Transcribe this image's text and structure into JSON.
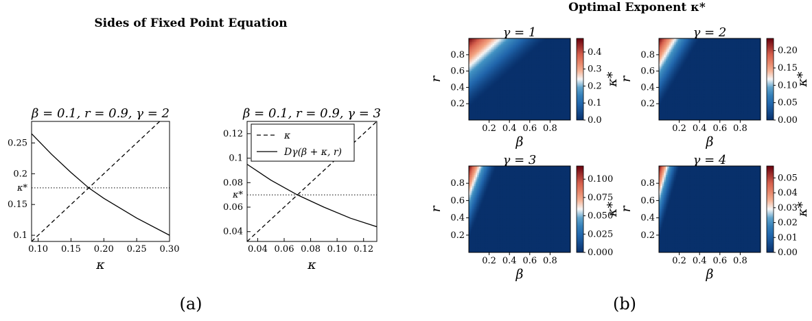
{
  "panel_a": {
    "title": "Sides of Fixed Point Equation",
    "label": "(a)",
    "kstar_label": "κ*"
  },
  "panel_b": {
    "title": "Optimal Exponent κ*",
    "label": "(b)"
  },
  "colors": {
    "low": "#08306b",
    "mid": "#f7f7f7",
    "high": "#67000d"
  },
  "chart_data": [
    {
      "type": "line",
      "title": "β = 0.1, r = 0.9, γ = 2",
      "xlabel": "κ",
      "ylabel": "",
      "xlim": [
        0.09,
        0.3
      ],
      "ylim": [
        0.09,
        0.285
      ],
      "xticks": [
        "0.10",
        "0.15",
        "0.20",
        "0.25",
        "0.30"
      ],
      "yticks": [
        "0.1",
        "0.15",
        "0.2",
        "0.25"
      ],
      "kappa_star": 0.177,
      "series": [
        {
          "style": "dashed",
          "x": [
            0.09,
            0.3
          ],
          "y": [
            0.09,
            0.3
          ]
        },
        {
          "style": "solid",
          "x": [
            0.09,
            0.12,
            0.15,
            0.177,
            0.2,
            0.25,
            0.3
          ],
          "y": [
            0.265,
            0.232,
            0.202,
            0.177,
            0.16,
            0.128,
            0.1
          ]
        }
      ]
    },
    {
      "type": "line",
      "title": "β = 0.1, r = 0.9, γ = 3",
      "xlabel": "κ",
      "ylabel": "",
      "xlim": [
        0.032,
        0.13
      ],
      "ylim": [
        0.032,
        0.13
      ],
      "xticks": [
        "0.04",
        "0.06",
        "0.08",
        "0.10",
        "0.12"
      ],
      "yticks": [
        "0.04",
        "0.06",
        "0.08",
        "0.1",
        "0.12"
      ],
      "kappa_star": 0.07,
      "legend": {
        "placement": "top-left",
        "entries": [
          {
            "label": "κ",
            "style": "dashed"
          },
          {
            "label": "Dγ(β + κ, r)",
            "style": "solid"
          }
        ]
      },
      "series": [
        {
          "style": "dashed",
          "x": [
            0.032,
            0.13
          ],
          "y": [
            0.032,
            0.13
          ]
        },
        {
          "style": "solid",
          "x": [
            0.032,
            0.05,
            0.07,
            0.09,
            0.11,
            0.13
          ],
          "y": [
            0.095,
            0.082,
            0.07,
            0.06,
            0.051,
            0.044
          ]
        }
      ]
    },
    {
      "type": "heatmap",
      "title": "γ = 1",
      "xlabel": "β",
      "ylabel": "r",
      "colorbar_label": "κ*",
      "xlim": [
        0,
        1
      ],
      "ylim": [
        0,
        1
      ],
      "xticks": [
        "0.2",
        "0.4",
        "0.6",
        "0.8"
      ],
      "yticks": [
        "0.2",
        "0.4",
        "0.6",
        "0.8"
      ],
      "vmax": 0.48,
      "colorbar_ticks": [
        "0.0",
        "0.1",
        "0.2",
        "0.3",
        "0.4"
      ],
      "colorbar_values": [
        0,
        0.1,
        0.2,
        0.3,
        0.4
      ],
      "gamma": 1
    },
    {
      "type": "heatmap",
      "title": "γ = 2",
      "xlabel": "β",
      "ylabel": "r",
      "colorbar_label": "κ*",
      "xlim": [
        0,
        1
      ],
      "ylim": [
        0,
        1
      ],
      "xticks": [
        "0.2",
        "0.4",
        "0.6",
        "0.8"
      ],
      "yticks": [
        "0.2",
        "0.4",
        "0.6",
        "0.8"
      ],
      "vmax": 0.235,
      "colorbar_ticks": [
        "0.00",
        "0.05",
        "0.10",
        "0.15",
        "0.20"
      ],
      "colorbar_values": [
        0,
        0.05,
        0.1,
        0.15,
        0.2
      ],
      "gamma": 2
    },
    {
      "type": "heatmap",
      "title": "γ = 3",
      "xlabel": "β",
      "ylabel": "r",
      "colorbar_label": "κ*",
      "xlim": [
        0,
        1
      ],
      "ylim": [
        0,
        1
      ],
      "xticks": [
        "0.2",
        "0.4",
        "0.6",
        "0.8"
      ],
      "yticks": [
        "0.2",
        "0.4",
        "0.6",
        "0.8"
      ],
      "vmax": 0.118,
      "colorbar_ticks": [
        "0.000",
        "0.025",
        "0.050",
        "0.075",
        "0.100"
      ],
      "colorbar_values": [
        0,
        0.025,
        0.05,
        0.075,
        0.1
      ],
      "gamma": 3
    },
    {
      "type": "heatmap",
      "title": "γ = 4",
      "xlabel": "β",
      "ylabel": "r",
      "colorbar_label": "κ*",
      "xlim": [
        0,
        1
      ],
      "ylim": [
        0,
        1
      ],
      "xticks": [
        "0.2",
        "0.4",
        "0.6",
        "0.8"
      ],
      "yticks": [
        "0.2",
        "0.4",
        "0.6",
        "0.8"
      ],
      "vmax": 0.058,
      "colorbar_ticks": [
        "0.00",
        "0.01",
        "0.02",
        "0.03",
        "0.04",
        "0.05"
      ],
      "colorbar_values": [
        0,
        0.01,
        0.02,
        0.03,
        0.04,
        0.05
      ],
      "gamma": 4
    }
  ]
}
